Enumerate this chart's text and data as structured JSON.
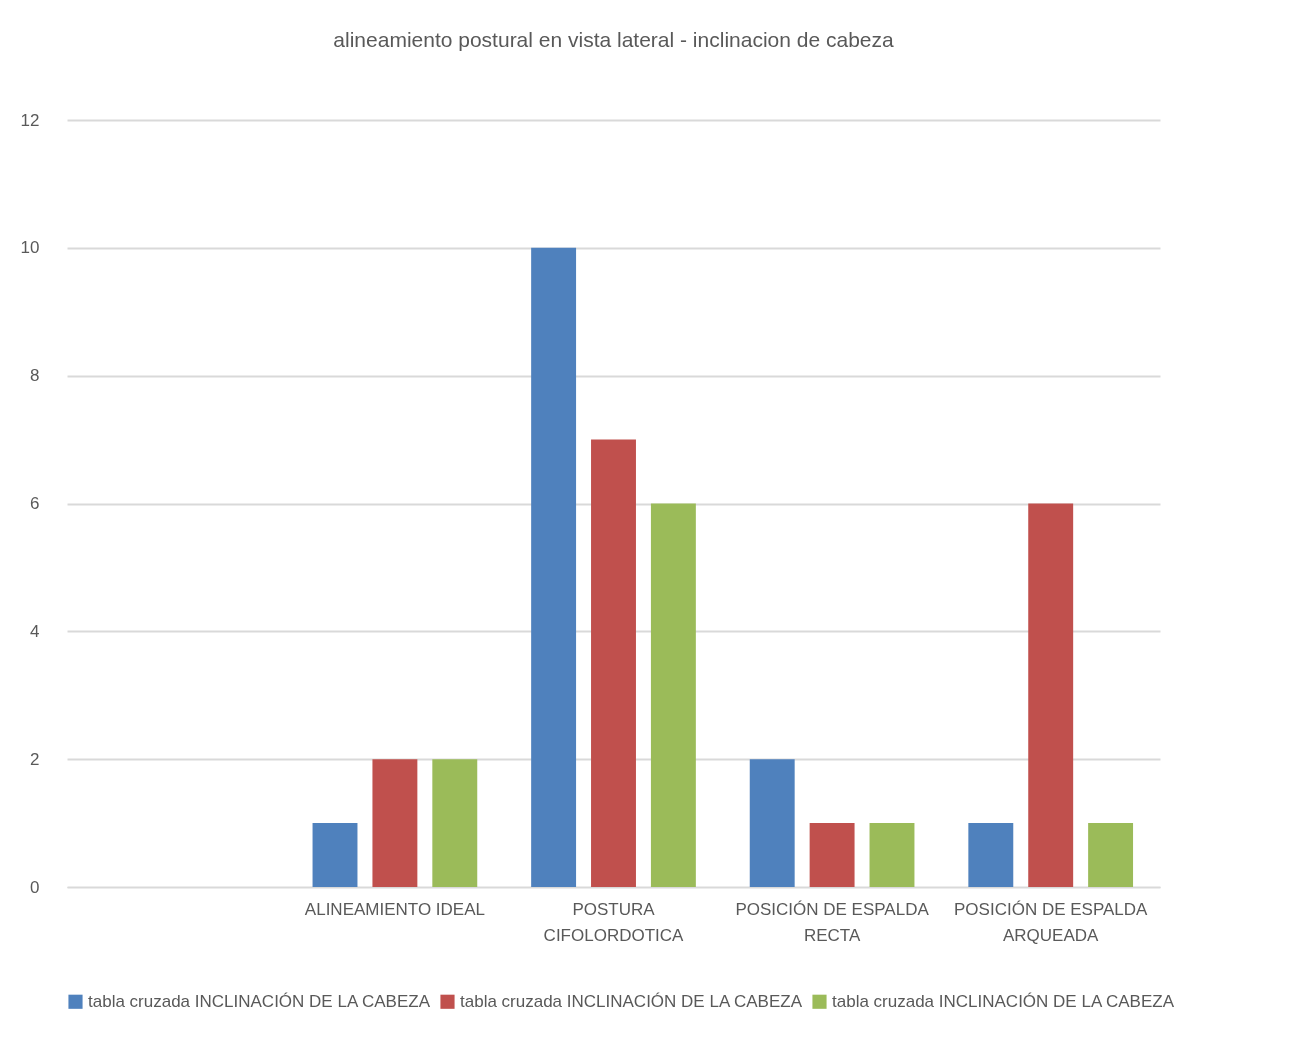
{
  "chart_data": {
    "type": "bar",
    "title": "alineamiento postural en vista lateral - inclinacion de cabeza",
    "categories": [
      null,
      "ALINEAMIENTO IDEAL",
      "POSTURA CIFOLORDOTICA",
      "POSICIÓN DE ESPALDA RECTA",
      "POSICIÓN DE ESPALDA ARQUEADA"
    ],
    "series": [
      {
        "name": "tabla cruzada INCLINACIÓN DE LA CABEZA",
        "color": "#4f81bd",
        "values": [
          null,
          1,
          10,
          2,
          1
        ]
      },
      {
        "name": "tabla cruzada INCLINACIÓN DE LA CABEZA",
        "color": "#c0504d",
        "values": [
          null,
          2,
          7,
          1,
          6
        ]
      },
      {
        "name": "tabla cruzada INCLINACIÓN DE LA CABEZA",
        "color": "#9bbb59",
        "values": [
          null,
          2,
          6,
          1,
          1
        ]
      }
    ],
    "ylim": [
      0,
      12
    ],
    "yticks": [
      0,
      2,
      4,
      6,
      8,
      10,
      12
    ],
    "grid": "y",
    "legend": "bottom"
  }
}
